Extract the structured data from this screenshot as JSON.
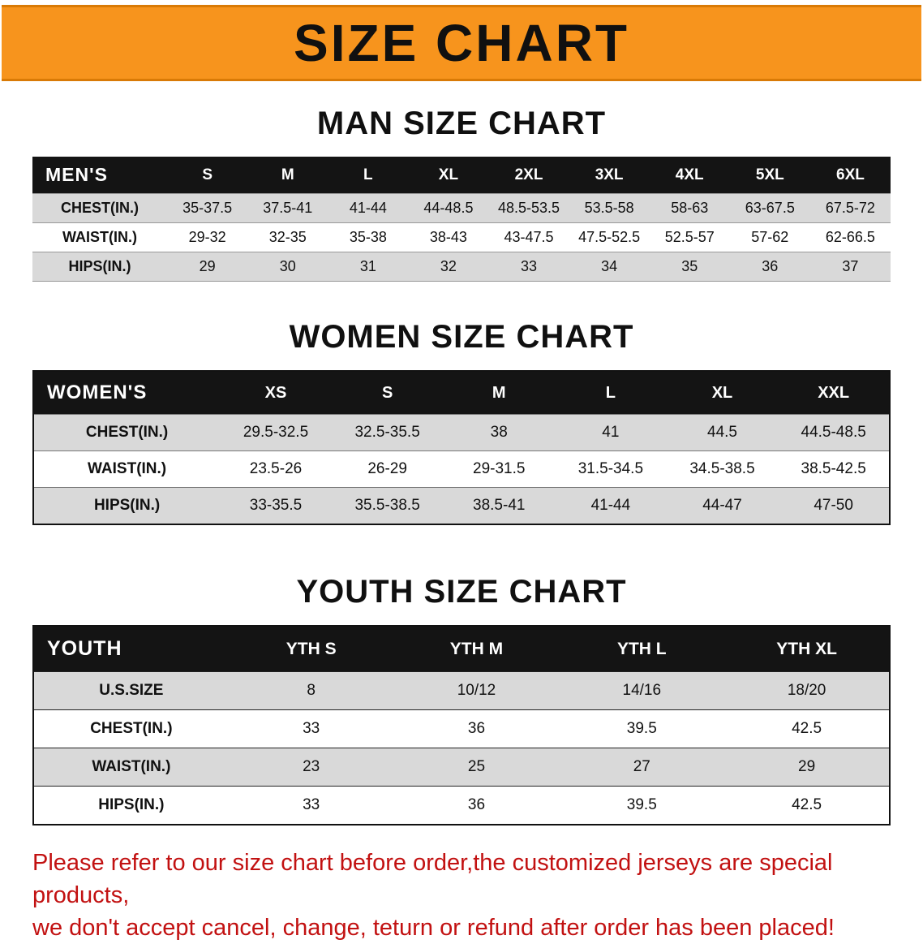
{
  "banner": {
    "title": "SIZE CHART",
    "bg_color": "#f7941d"
  },
  "sections": [
    {
      "heading": "MAN SIZE CHART",
      "table": {
        "header": [
          "MEN'S",
          "S",
          "M",
          "L",
          "XL",
          "2XL",
          "3XL",
          "4XL",
          "5XL",
          "6XL"
        ],
        "rows": [
          [
            "CHEST(IN.)",
            "35-37.5",
            "37.5-41",
            "41-44",
            "44-48.5",
            "48.5-53.5",
            "53.5-58",
            "58-63",
            "63-67.5",
            "67.5-72"
          ],
          [
            "WAIST(IN.)",
            "29-32",
            "32-35",
            "35-38",
            "38-43",
            "43-47.5",
            "47.5-52.5",
            "52.5-57",
            "57-62",
            "62-66.5"
          ],
          [
            "HIPS(IN.)",
            "29",
            "30",
            "31",
            "32",
            "33",
            "34",
            "35",
            "36",
            "37"
          ]
        ]
      }
    },
    {
      "heading": "WOMEN SIZE CHART",
      "table": {
        "header": [
          "WOMEN'S",
          "XS",
          "S",
          "M",
          "L",
          "XL",
          "XXL"
        ],
        "rows": [
          [
            "CHEST(IN.)",
            "29.5-32.5",
            "32.5-35.5",
            "38",
            "41",
            "44.5",
            "44.5-48.5"
          ],
          [
            "WAIST(IN.)",
            "23.5-26",
            "26-29",
            "29-31.5",
            "31.5-34.5",
            "34.5-38.5",
            "38.5-42.5"
          ],
          [
            "HIPS(IN.)",
            "33-35.5",
            "35.5-38.5",
            "38.5-41",
            "41-44",
            "44-47",
            "47-50"
          ]
        ]
      }
    },
    {
      "heading": "YOUTH SIZE CHART",
      "table": {
        "header": [
          "YOUTH",
          "YTH S",
          "YTH M",
          "YTH L",
          "YTH XL"
        ],
        "rows": [
          [
            "U.S.SIZE",
            "8",
            "10/12",
            "14/16",
            "18/20"
          ],
          [
            "CHEST(IN.)",
            "33",
            "36",
            "39.5",
            "42.5"
          ],
          [
            "WAIST(IN.)",
            "23",
            "25",
            "27",
            "29"
          ],
          [
            "HIPS(IN.)",
            "33",
            "36",
            "39.5",
            "42.5"
          ]
        ]
      }
    }
  ],
  "note": {
    "line1": "Please refer to our size chart before order,the customized jerseys are special products,",
    "line2": "we don't accept cancel, change, teturn or refund after order has been placed!"
  }
}
